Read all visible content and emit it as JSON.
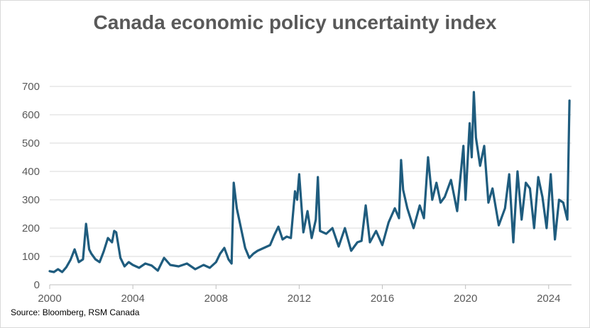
{
  "chart_data": {
    "type": "line",
    "title": "Canada economic policy uncertainty index",
    "source": "Source: Bloomberg, RSM Canada",
    "xlabel": "",
    "ylabel": "",
    "xlim": [
      2000,
      2025.1
    ],
    "ylim": [
      0,
      700
    ],
    "x_ticks": [
      2000,
      2004,
      2008,
      2012,
      2016,
      2020,
      2024
    ],
    "y_ticks": [
      0,
      100,
      200,
      300,
      400,
      500,
      600,
      700
    ],
    "grid": "horizontal",
    "legend": "none",
    "colors": {
      "line": "#1f5c7e",
      "grid": "#d9d9d9",
      "text": "#595959"
    },
    "series": [
      {
        "x": [
          2000.0,
          2000.2,
          2000.4,
          2000.6,
          2000.8,
          2001.0,
          2001.2,
          2001.4,
          2001.6,
          2001.75,
          2001.9,
          2002.0,
          2002.2,
          2002.4,
          2002.6,
          2002.8,
          2003.0,
          2003.1,
          2003.2,
          2003.4,
          2003.6,
          2003.8,
          2004.0,
          2004.3,
          2004.6,
          2004.9,
          2005.2,
          2005.5,
          2005.8,
          2006.2,
          2006.6,
          2007.0,
          2007.4,
          2007.7,
          2008.0,
          2008.2,
          2008.4,
          2008.6,
          2008.75,
          2008.85,
          2009.0,
          2009.2,
          2009.4,
          2009.6,
          2009.8,
          2010.0,
          2010.3,
          2010.6,
          2010.8,
          2011.0,
          2011.2,
          2011.4,
          2011.6,
          2011.8,
          2011.9,
          2012.0,
          2012.2,
          2012.4,
          2012.6,
          2012.8,
          2012.9,
          2013.0,
          2013.3,
          2013.6,
          2013.9,
          2014.2,
          2014.5,
          2014.8,
          2015.0,
          2015.2,
          2015.4,
          2015.7,
          2016.0,
          2016.3,
          2016.6,
          2016.8,
          2016.9,
          2017.0,
          2017.2,
          2017.5,
          2017.8,
          2018.0,
          2018.2,
          2018.4,
          2018.6,
          2018.8,
          2019.0,
          2019.3,
          2019.6,
          2019.9,
          2020.0,
          2020.2,
          2020.3,
          2020.4,
          2020.5,
          2020.7,
          2020.9,
          2021.1,
          2021.3,
          2021.6,
          2021.9,
          2022.1,
          2022.3,
          2022.5,
          2022.7,
          2022.9,
          2023.1,
          2023.3,
          2023.5,
          2023.7,
          2023.9,
          2024.1,
          2024.3,
          2024.5,
          2024.7,
          2024.9,
          2025.0
        ],
        "y": [
          48,
          45,
          55,
          45,
          62,
          88,
          125,
          80,
          90,
          215,
          125,
          110,
          90,
          80,
          118,
          165,
          150,
          190,
          185,
          95,
          65,
          80,
          70,
          60,
          75,
          68,
          50,
          95,
          70,
          65,
          75,
          55,
          70,
          60,
          80,
          110,
          130,
          90,
          75,
          360,
          270,
          200,
          130,
          95,
          110,
          120,
          130,
          140,
          175,
          205,
          160,
          170,
          165,
          330,
          300,
          390,
          185,
          260,
          165,
          230,
          380,
          190,
          180,
          200,
          135,
          200,
          120,
          150,
          155,
          280,
          150,
          190,
          140,
          220,
          270,
          235,
          440,
          335,
          270,
          200,
          280,
          235,
          450,
          300,
          360,
          290,
          310,
          370,
          260,
          490,
          300,
          570,
          450,
          680,
          520,
          420,
          490,
          290,
          340,
          210,
          270,
          390,
          150,
          400,
          230,
          360,
          340,
          200,
          380,
          310,
          200,
          390,
          160,
          300,
          290,
          230,
          650
        ]
      }
    ]
  }
}
